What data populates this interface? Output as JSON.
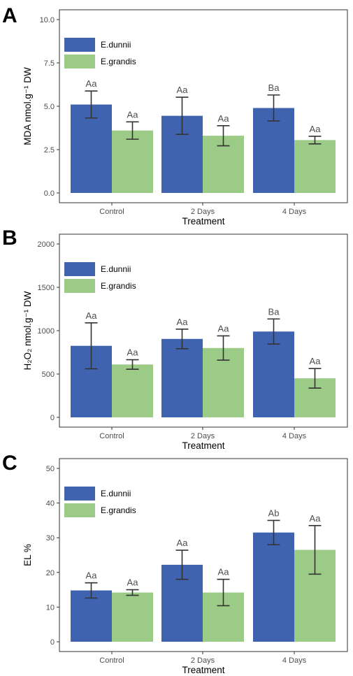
{
  "colors": {
    "E.dunnii": "#4063b0",
    "E.grandis": "#9bcb86",
    "panel_border": "#333333",
    "error_bar": "#333333"
  },
  "chart_data": [
    {
      "type": "bar",
      "panel": "A",
      "xlabel": "Treatment",
      "ylabel": "MDA nmol.g⁻¹ DW",
      "categories": [
        "Control",
        "2 Days",
        "4 Days"
      ],
      "ylim": [
        0,
        10.0
      ],
      "yticks": [
        "0.0",
        "2.5",
        "5.0",
        "7.5",
        "10.0"
      ],
      "grid": false,
      "legend": "top-left",
      "series": [
        {
          "name": "E.dunnii",
          "values": [
            5.1,
            4.45,
            4.9
          ],
          "errors": [
            0.78,
            1.07,
            0.75
          ],
          "labels": [
            "Aa",
            "Aa",
            "Ba"
          ]
        },
        {
          "name": "E.grandis",
          "values": [
            3.6,
            3.3,
            3.05
          ],
          "errors": [
            0.5,
            0.58,
            0.22
          ],
          "labels": [
            "Aa",
            "Aa",
            "Aa"
          ]
        }
      ]
    },
    {
      "type": "bar",
      "panel": "B",
      "xlabel": "Treatment",
      "ylabel": "H₂O₂ nmol.g⁻¹ DW",
      "categories": [
        "Control",
        "2 Days",
        "4 Days"
      ],
      "ylim": [
        0,
        2000
      ],
      "yticks": [
        "0",
        "500",
        "1000",
        "1500",
        "2000"
      ],
      "grid": false,
      "legend": "top-left",
      "series": [
        {
          "name": "E.dunnii",
          "values": [
            825,
            905,
            990
          ],
          "errors": [
            265,
            113,
            145
          ],
          "labels": [
            "Aa",
            "Aa",
            "Ba"
          ]
        },
        {
          "name": "E.grandis",
          "values": [
            610,
            800,
            450
          ],
          "errors": [
            55,
            140,
            113
          ],
          "labels": [
            "Aa",
            "Aa",
            "Aa"
          ]
        }
      ]
    },
    {
      "type": "bar",
      "panel": "C",
      "xlabel": "Treatment",
      "ylabel": "EL %",
      "categories": [
        "Control",
        "2 Days",
        "4 Days"
      ],
      "ylim": [
        0,
        50
      ],
      "yticks": [
        "0",
        "10",
        "20",
        "30",
        "40",
        "50"
      ],
      "grid": false,
      "legend": "top-left",
      "series": [
        {
          "name": "E.dunnii",
          "values": [
            14.8,
            22.2,
            31.5
          ],
          "errors": [
            2.2,
            4.2,
            3.5
          ],
          "labels": [
            "Aa",
            "Aa",
            "Ab"
          ]
        },
        {
          "name": "E.grandis",
          "values": [
            14.2,
            14.2,
            26.5
          ],
          "errors": [
            0.8,
            3.8,
            7.0
          ],
          "labels": [
            "Aa",
            "Aa",
            "Aa"
          ]
        }
      ]
    }
  ]
}
